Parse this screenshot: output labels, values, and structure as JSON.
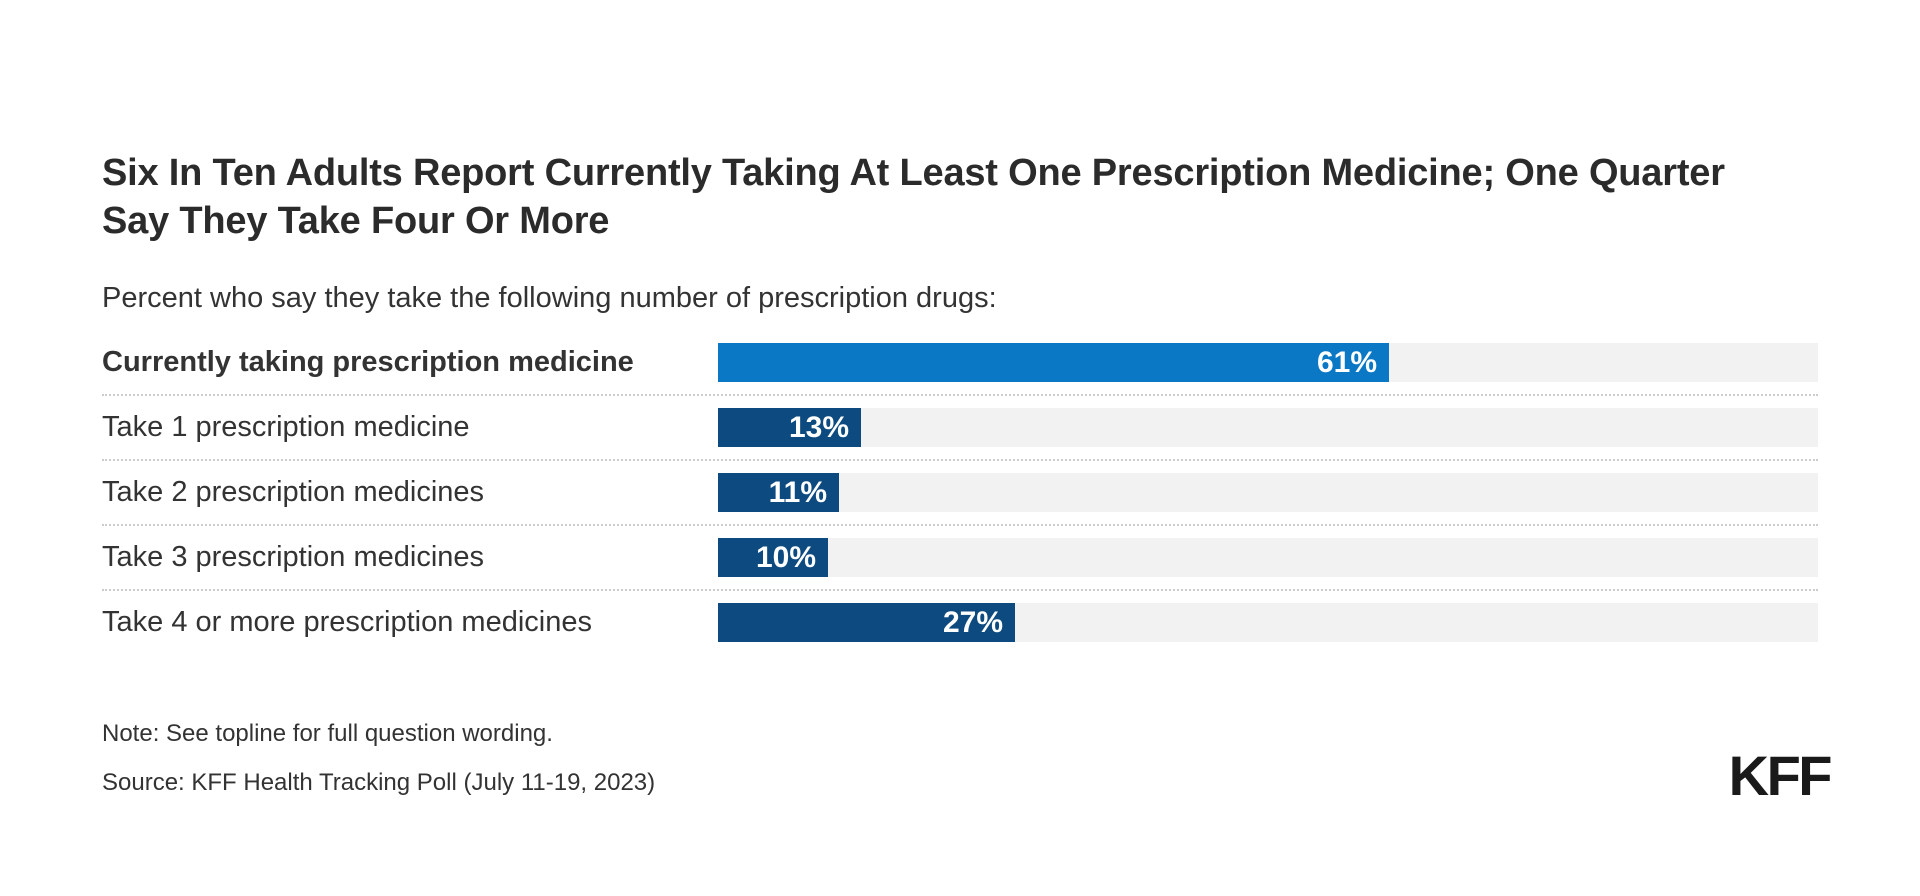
{
  "title": "Six In Ten Adults Report Currently Taking At Least One Prescription Medicine; One Quarter Say They Take Four Or More",
  "subtitle": "Percent who say they take the following number of prescription drugs:",
  "chart_data": {
    "type": "bar",
    "orientation": "horizontal",
    "xlim": [
      0,
      100
    ],
    "grid": false,
    "legend": "none",
    "categories": [
      "Currently taking prescription medicine",
      "Take 1 prescription medicine",
      "Take 2 prescription medicines",
      "Take 3 prescription medicines",
      "Take 4 or more prescription medicines"
    ],
    "values": [
      61,
      13,
      11,
      10,
      27
    ],
    "value_labels": [
      "61%",
      "13%",
      "11%",
      "10%",
      "27%"
    ],
    "bars": [
      {
        "label": "Currently taking prescription medicine",
        "value": 61,
        "display": "61%",
        "color": "#0A78C4",
        "bold_label": true
      },
      {
        "label": "Take 1 prescription medicine",
        "value": 13,
        "display": "13%",
        "color": "#0D4A80",
        "bold_label": false
      },
      {
        "label": "Take 2 prescription medicines",
        "value": 11,
        "display": "11%",
        "color": "#0D4A80",
        "bold_label": false
      },
      {
        "label": "Take 3 prescription medicines",
        "value": 10,
        "display": "10%",
        "color": "#0D4A80",
        "bold_label": false
      },
      {
        "label": "Take 4 or more prescription medicines",
        "value": 27,
        "display": "27%",
        "color": "#0D4A80",
        "bold_label": false
      }
    ],
    "track_color": "#F2F2F2",
    "value_label_color": "#FFFFFF",
    "value_label_position": "inside-right",
    "separator_style": "dotted"
  },
  "colors": {
    "accent_blue": "#0A78C4",
    "navy": "#0D4A80",
    "track": "#F2F2F2",
    "title_text": "#2B2B2B",
    "body_text": "#333333",
    "separator": "#CCCCCC",
    "background": "#FFFFFF",
    "logo": "#1A1A1A"
  },
  "note": "Note: See topline for full question wording.",
  "source": "Source: KFF Health Tracking Poll (July 11-19, 2023)",
  "logo": {
    "text": "KFF"
  }
}
